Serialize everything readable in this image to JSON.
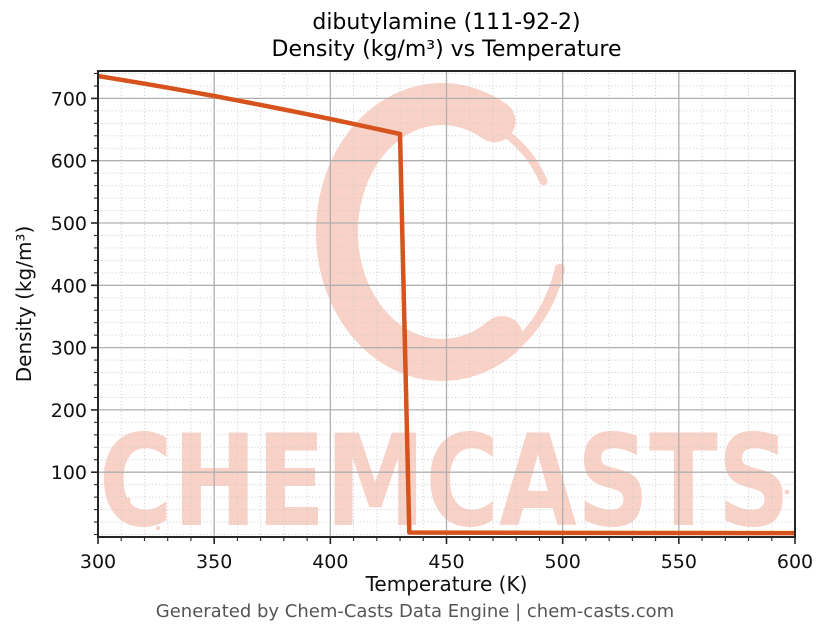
{
  "header": {
    "title_line1": "dibutylamine (111-92-2)",
    "title_line2": "Density (kg/m³) vs Temperature"
  },
  "watermark": {
    "text": "CHEMCASTS",
    "logo": "chemcasts-c-swirl",
    "color": "#f8d1c7"
  },
  "footer": {
    "text": "Generated by Chem-Casts Data Engine | chem-casts.com"
  },
  "chart_data": {
    "type": "line",
    "title": "dibutylamine (111-92-2) — Density (kg/m³) vs Temperature",
    "xlabel": "Temperature (K)",
    "ylabel": "Density (kg/m³)",
    "xlim": [
      300,
      600
    ],
    "ylim": [
      -4,
      744
    ],
    "xticks": [
      300,
      350,
      400,
      450,
      500,
      550,
      600
    ],
    "yticks": [
      100,
      200,
      300,
      400,
      500,
      600,
      700
    ],
    "x_minor_step": 10,
    "y_minor_step": 20,
    "grid": true,
    "legend": false,
    "line_color": "#d6531d",
    "line_width": 4.5,
    "series": [
      {
        "name": "density",
        "points": [
          [
            300,
            736.0
          ],
          [
            310,
            729.9
          ],
          [
            320,
            723.6
          ],
          [
            330,
            717.2
          ],
          [
            340,
            710.6
          ],
          [
            350,
            703.8
          ],
          [
            360,
            696.8
          ],
          [
            370,
            689.6
          ],
          [
            380,
            682.2
          ],
          [
            390,
            674.7
          ],
          [
            400,
            667.0
          ],
          [
            410,
            659.1
          ],
          [
            420,
            651.0
          ],
          [
            430,
            642.8
          ],
          [
            434,
            3.2
          ],
          [
            450,
            3.0
          ],
          [
            500,
            2.6
          ],
          [
            550,
            2.4
          ],
          [
            600,
            2.2
          ]
        ]
      }
    ]
  }
}
